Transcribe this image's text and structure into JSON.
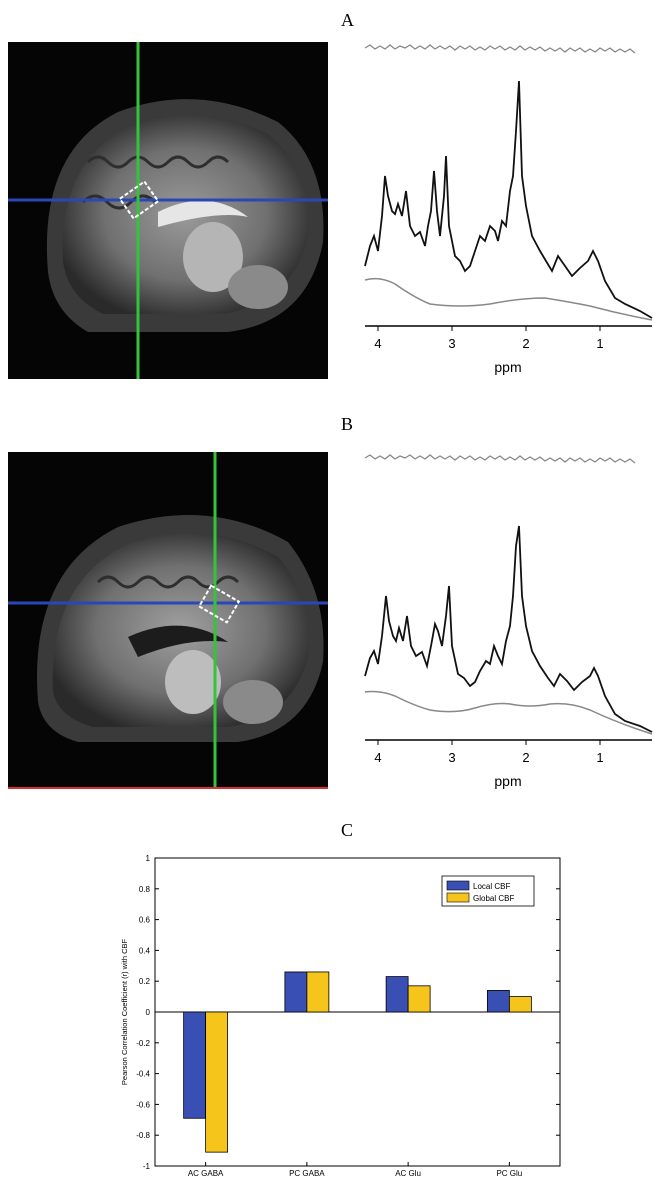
{
  "figure": {
    "panel_labels": [
      "A",
      "B",
      "C"
    ],
    "spectrum_axis_label": "ppm",
    "spectrum_ticks": [
      "4",
      "3",
      "2",
      "1"
    ],
    "crosshair_colors": {
      "horizontal": "#2a47b8",
      "vertical": "#33c43a",
      "voxel": "#ffffff"
    }
  },
  "chart_data": {
    "type": "bar",
    "title": "",
    "xlabel": "",
    "ylabel": "Pearson Correlation Coefficient (r) with CBF",
    "ylim": [
      -1,
      1
    ],
    "yticks": [
      "1",
      "0.8",
      "0.6",
      "0.4",
      "0.2",
      "0",
      "-0.2",
      "-0.4",
      "-0.6",
      "-0.8",
      "-1"
    ],
    "categories": [
      "AC GABA",
      "PC GABA",
      "AC Glu",
      "PC Glu"
    ],
    "series": [
      {
        "name": "Local CBF",
        "color": "#3a4fb3",
        "values": [
          -0.69,
          0.26,
          0.23,
          0.14
        ]
      },
      {
        "name": "Global CBF",
        "color": "#f6c51c",
        "values": [
          -0.91,
          0.26,
          0.17,
          0.1
        ]
      }
    ],
    "legend_position": "top-right",
    "grid": false
  }
}
